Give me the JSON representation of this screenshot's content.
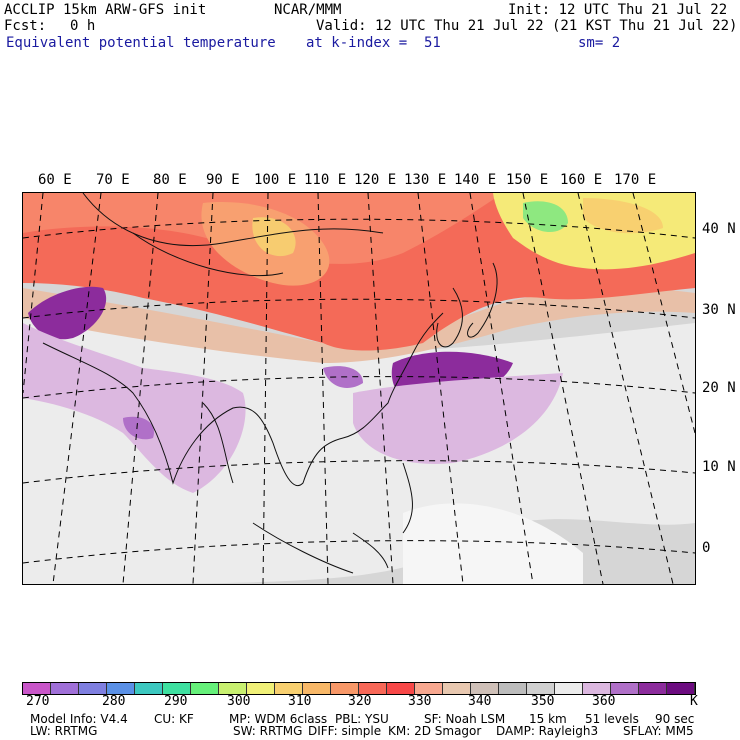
{
  "header": {
    "title_left": "ACCLIP 15km ARW-GFS init",
    "title_center": "NCAR/MMM",
    "init": "Init: 12 UTC Thu 21 Jul 22",
    "fcst_label": "Fcst:",
    "fcst_value": "0 h",
    "valid": "Valid: 12 UTC Thu 21 Jul 22 (21 KST Thu 21 Jul 22)",
    "field": "Equivalent potential temperature",
    "level": "at k-index =  51",
    "smooth": "sm= 2"
  },
  "map": {
    "lon_labels": [
      "60 E",
      "70 E",
      "80 E",
      "90 E",
      "100 E",
      "110 E",
      "120 E",
      "130 E",
      "140 E",
      "150 E",
      "160 E",
      "170 E"
    ],
    "lat_labels": [
      "40 N",
      "30 N",
      "20 N",
      "10 N",
      "0"
    ]
  },
  "colorbar": {
    "colors": [
      "#c956c9",
      "#a070d8",
      "#7f7fe0",
      "#5a90e6",
      "#3cc8c0",
      "#3ee0a0",
      "#66f07a",
      "#c8f070",
      "#f0f078",
      "#f8d070",
      "#f8b868",
      "#f89868",
      "#f86858",
      "#f84848",
      "#f8a890",
      "#e8c8b0",
      "#cfc0b8",
      "#bcbcbc",
      "#d0d0d0",
      "#ececec",
      "#dcb8e0",
      "#b070c8",
      "#8c2c9c",
      "#6c0c80"
    ],
    "labels": [
      "270",
      "280",
      "290",
      "300",
      "310",
      "320",
      "330",
      "340",
      "350",
      "360",
      "K"
    ]
  },
  "footer": {
    "line1": [
      "Model Info: V4.4",
      "CU: KF",
      "MP: WDM 6class",
      "PBL: YSU",
      "SF: Noah LSM",
      "15 km",
      "51 levels",
      "90 sec"
    ],
    "line2": [
      "LW: RRTMG",
      "SW: RRTMG",
      "DIFF: simple",
      "KM: 2D Smagor",
      "DAMP: Rayleigh3",
      "SFLAY: MM5"
    ]
  }
}
